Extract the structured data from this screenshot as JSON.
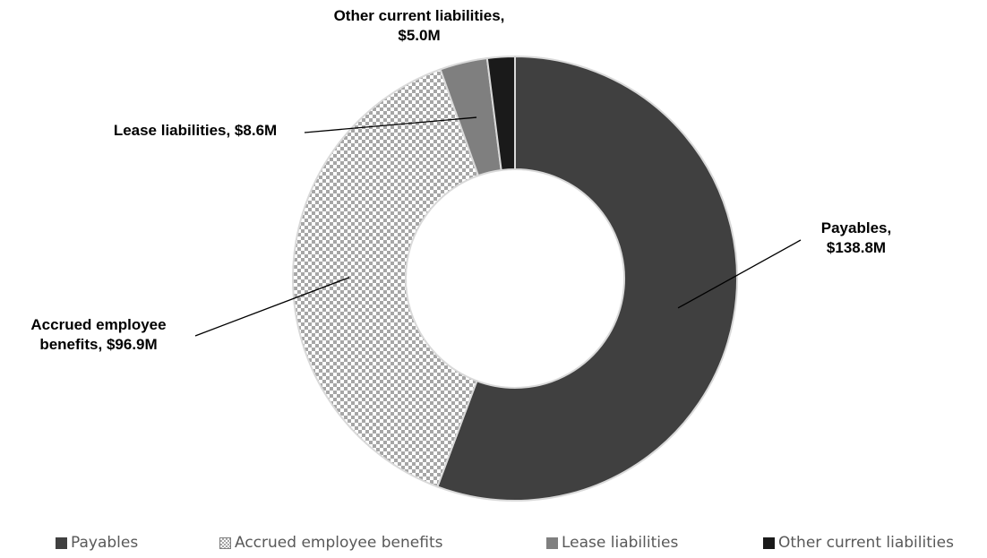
{
  "chart_data": {
    "type": "pie",
    "subtype": "donut",
    "title": "",
    "unit": "$M",
    "categories": [
      "Payables",
      "Accrued employee benefits",
      "Lease liabilities",
      "Other current liabilities"
    ],
    "values": [
      138.8,
      96.9,
      8.6,
      5.0
    ],
    "data_labels": [
      [
        "Payables,",
        "$138.8M"
      ],
      [
        "Accrued employee",
        "benefits, $96.9M"
      ],
      [
        "Lease liabilities,  $8.6M"
      ],
      [
        "Other current liabilities,",
        "$5.0M"
      ]
    ],
    "colors": [
      "#404040",
      "#bfbfbf",
      "#7f7f7f",
      "#1a1a1a"
    ],
    "legend": {
      "position": "bottom",
      "items": [
        "Payables",
        "Accrued employee benefits",
        "Lease liabilities",
        "Other current liabilities"
      ]
    }
  }
}
